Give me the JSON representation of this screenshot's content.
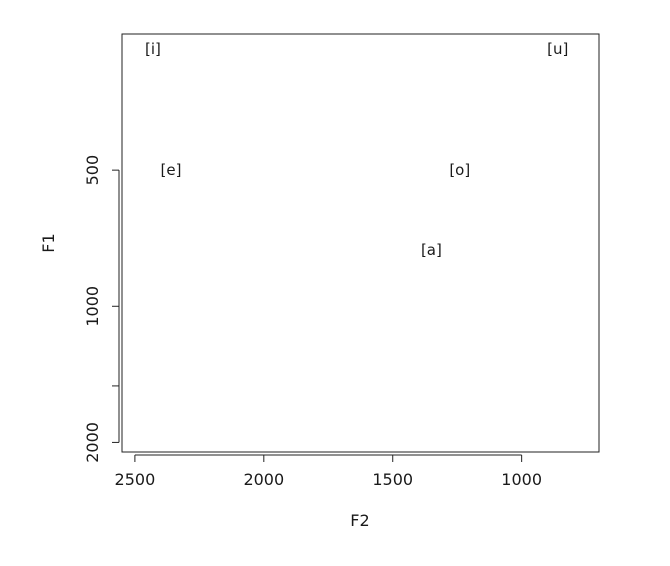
{
  "chart_data": {
    "type": "scatter",
    "title": "",
    "xlabel": "F2",
    "ylabel": "F1",
    "x_reversed": true,
    "y_reversed": true,
    "y_scale": "log",
    "xlim": [
      2550,
      700
    ],
    "ylim": [
      250,
      2100
    ],
    "x_ticks": [
      {
        "value": 2500,
        "label": "2500"
      },
      {
        "value": 2000,
        "label": "2000"
      },
      {
        "value": 1500,
        "label": "1500"
      },
      {
        "value": 1000,
        "label": "1000"
      }
    ],
    "y_ticks": [
      {
        "value": 500,
        "label": "500"
      },
      {
        "value": 1000,
        "label": "1000"
      },
      {
        "value": 1500,
        "label": ""
      },
      {
        "value": 2000,
        "label": "2000"
      }
    ],
    "grid": false,
    "legend": "none",
    "points": [
      {
        "label": "[i]",
        "x": 2430,
        "y": 270
      },
      {
        "label": "[u]",
        "x": 860,
        "y": 270
      },
      {
        "label": "[e]",
        "x": 2360,
        "y": 500
      },
      {
        "label": "[o]",
        "x": 1240,
        "y": 500
      },
      {
        "label": "[a]",
        "x": 1350,
        "y": 750
      }
    ]
  }
}
